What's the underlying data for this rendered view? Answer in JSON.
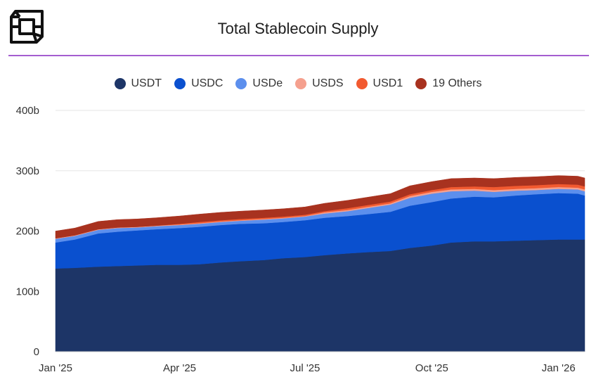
{
  "header": {
    "title": "Total Stablecoin Supply"
  },
  "icons": {
    "logo": "cube-logo-icon"
  },
  "chart_data": {
    "type": "area",
    "stacked": true,
    "title": "Total Stablecoin Supply",
    "legend_position": "top-center",
    "grid": true,
    "ylim": [
      0,
      400
    ],
    "y_ticks": [
      {
        "value": 0,
        "label": "0"
      },
      {
        "value": 100,
        "label": "100b"
      },
      {
        "value": 200,
        "label": "200b"
      },
      {
        "value": 300,
        "label": "300b"
      },
      {
        "value": 400,
        "label": "400b"
      }
    ],
    "x_ticks": [
      {
        "value": "2025-01-01",
        "label": "Jan '25"
      },
      {
        "value": "2025-04-01",
        "label": "Apr '25"
      },
      {
        "value": "2025-07-01",
        "label": "Jul '25"
      },
      {
        "value": "2025-10-01",
        "label": "Oct '25"
      },
      {
        "value": "2026-01-01",
        "label": "Jan '26"
      }
    ],
    "x_range": [
      "2025-01-01",
      "2026-01-20"
    ],
    "x": [
      "2025-01-01",
      "2025-01-15",
      "2025-02-01",
      "2025-02-15",
      "2025-03-01",
      "2025-03-15",
      "2025-04-01",
      "2025-04-15",
      "2025-05-01",
      "2025-05-15",
      "2025-06-01",
      "2025-06-15",
      "2025-07-01",
      "2025-07-15",
      "2025-08-01",
      "2025-08-15",
      "2025-09-01",
      "2025-09-15",
      "2025-10-01",
      "2025-10-15",
      "2025-11-01",
      "2025-11-15",
      "2025-12-01",
      "2025-12-15",
      "2026-01-01",
      "2026-01-15",
      "2026-01-20"
    ],
    "series": [
      {
        "name": "USDT",
        "color": "#1d3567",
        "values": [
          138,
          139,
          141,
          142,
          143,
          144,
          144,
          145,
          148,
          150,
          152,
          155,
          157,
          160,
          163,
          165,
          167,
          172,
          176,
          181,
          183,
          183,
          184,
          185,
          186,
          186,
          186
        ]
      },
      {
        "name": "USDC",
        "color": "#0a50cf",
        "values": [
          43,
          47,
          55,
          57,
          58,
          59,
          61,
          62,
          62,
          62,
          61,
          60,
          61,
          62,
          62,
          63,
          65,
          70,
          72,
          73,
          74,
          73,
          75,
          76,
          77,
          76,
          73
        ]
      },
      {
        "name": "USDe",
        "color": "#5c8fed",
        "values": [
          6,
          6,
          6,
          6,
          5,
          5,
          5,
          5,
          5,
          5,
          6,
          6,
          6,
          7,
          8,
          10,
          12,
          13,
          14,
          12,
          10,
          9,
          8,
          7,
          7,
          7,
          7
        ]
      },
      {
        "name": "USDS",
        "color": "#f5a08e",
        "values": [
          1,
          1,
          1,
          1,
          1,
          1,
          1,
          1,
          1,
          1,
          1,
          1,
          1,
          2,
          2,
          2,
          2,
          3,
          3,
          3,
          3,
          3,
          3,
          3,
          3,
          3,
          3
        ]
      },
      {
        "name": "USD1",
        "color": "#f25a30",
        "values": [
          0,
          0,
          0,
          0,
          0,
          0,
          1,
          2,
          2,
          2,
          2,
          2,
          2,
          2,
          3,
          3,
          3,
          3,
          3,
          4,
          4,
          5,
          5,
          5,
          5,
          5,
          5
        ]
      },
      {
        "name": "19 Others",
        "color": "#a8321f",
        "values": [
          12,
          12,
          13,
          13,
          13,
          13,
          13,
          13,
          13,
          13,
          13,
          13,
          13,
          13,
          13,
          13,
          13,
          14,
          14,
          14,
          14,
          14,
          14,
          14,
          14,
          14,
          14
        ]
      }
    ]
  }
}
